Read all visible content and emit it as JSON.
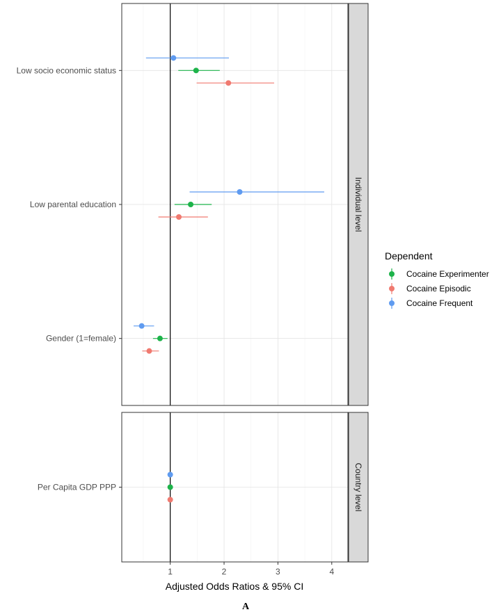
{
  "chart_data": {
    "type": "scatter",
    "subtype": "forest-plot",
    "xlabel": "Adjusted Odds Ratios & 95% CI",
    "figure_label": "A",
    "xlim": [
      0.1,
      4.3
    ],
    "xticks": [
      1,
      2,
      3,
      4
    ],
    "reference_line": 1,
    "grid": true,
    "legend": {
      "title": "Dependent",
      "position": "right",
      "entries": [
        {
          "key": "experimenter",
          "name": "Cocaine Experimenter",
          "color": "#1db34a"
        },
        {
          "key": "episodic",
          "name": "Cocaine Episodic",
          "color": "#f07a70"
        },
        {
          "key": "frequent",
          "name": "Cocaine Frequent",
          "color": "#5f9bf0"
        }
      ]
    },
    "panels": [
      {
        "strip": "Individual level",
        "variables": [
          "Low socio economic status",
          "Low parental education",
          "Gender (1=female)"
        ],
        "estimates": {
          "experimenter": [
            {
              "or": 1.48,
              "lo": 1.15,
              "hi": 1.92
            },
            {
              "or": 1.38,
              "lo": 1.08,
              "hi": 1.77
            },
            {
              "or": 0.81,
              "lo": 0.68,
              "hi": 0.95
            }
          ],
          "episodic": [
            {
              "or": 2.08,
              "lo": 1.49,
              "hi": 2.93
            },
            {
              "or": 1.16,
              "lo": 0.78,
              "hi": 1.7
            },
            {
              "or": 0.61,
              "lo": 0.48,
              "hi": 0.79
            }
          ],
          "frequent": [
            {
              "or": 1.06,
              "lo": 0.55,
              "hi": 2.09
            },
            {
              "or": 2.29,
              "lo": 1.36,
              "hi": 3.86
            },
            {
              "or": 0.47,
              "lo": 0.32,
              "hi": 0.7
            }
          ]
        }
      },
      {
        "strip": "Country level",
        "variables": [
          "Per Capita GDP PPP"
        ],
        "estimates": {
          "experimenter": [
            {
              "or": 1.0,
              "lo": 0.99,
              "hi": 1.01
            }
          ],
          "episodic": [
            {
              "or": 1.0,
              "lo": 0.99,
              "hi": 1.01
            }
          ],
          "frequent": [
            {
              "or": 1.0,
              "lo": 0.99,
              "hi": 1.01
            }
          ]
        }
      }
    ]
  }
}
